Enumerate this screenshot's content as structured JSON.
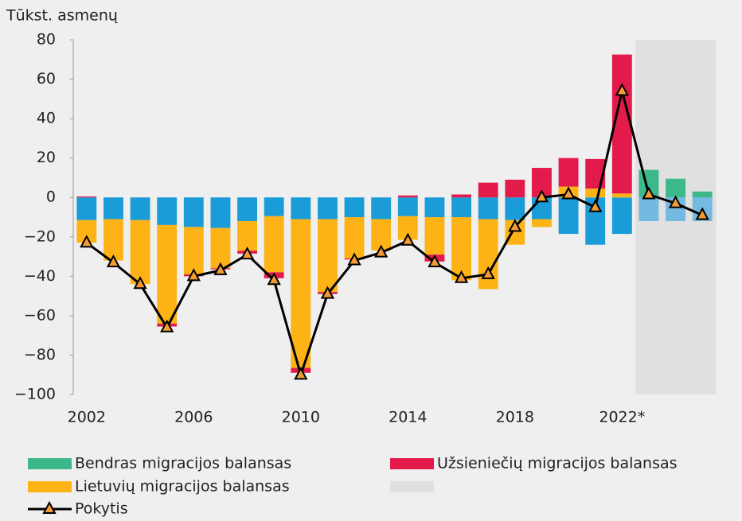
{
  "chart_data": {
    "type": "stacked-bar-line",
    "ylabel": "Tūkst. asmenų",
    "categories": [
      "2002",
      null,
      null,
      null,
      "2006",
      null,
      null,
      null,
      "2010",
      null,
      null,
      null,
      "2014",
      null,
      null,
      null,
      "2018",
      null,
      null,
      null,
      "2022*",
      null,
      null,
      null
    ],
    "ylim": [
      -100,
      80
    ],
    "yticks": [
      {
        "value": -100,
        "label": "−100"
      },
      {
        "value": -80,
        "label": "−80"
      },
      {
        "value": -60,
        "label": "−60"
      },
      {
        "value": -40,
        "label": "−40"
      },
      {
        "value": -20,
        "label": "−20"
      },
      0,
      20,
      40,
      60,
      80
    ],
    "series": [
      {
        "color": "#1a9cd8",
        "values": [
          -11.5,
          -11,
          -11.5,
          -14,
          -15,
          -15.5,
          -12,
          -9.5,
          -11,
          -11,
          -10,
          -11,
          -9.5,
          -10,
          -10,
          -11,
          -11.5,
          -11,
          -18.5,
          -24,
          -18.5,
          null,
          null,
          null
        ]
      },
      {
        "color": "#74b9e0",
        "shaded": true,
        "values": [
          null,
          null,
          null,
          null,
          null,
          null,
          null,
          null,
          null,
          null,
          null,
          null,
          null,
          null,
          null,
          null,
          null,
          null,
          null,
          null,
          null,
          -12,
          -12,
          -12
        ]
      },
      {
        "name": "Lietuvių migracijos balansas",
        "color": "#fdb316",
        "values": [
          -11.5,
          -21,
          -32.5,
          -50,
          -24,
          -20.5,
          -15,
          -28.5,
          -75.5,
          -37,
          -21,
          -16,
          -12,
          -19,
          -32,
          -35.5,
          -12.5,
          -4,
          5.5,
          4.5,
          2,
          null,
          null,
          null
        ]
      },
      {
        "name": "Užsieniečių migracijos balansas",
        "color": "#e31b4b",
        "values": [
          0.5,
          0,
          0,
          -1.5,
          -1,
          -0.5,
          -1.5,
          -3,
          -2.5,
          -1,
          -0.5,
          0,
          1,
          -3.5,
          1.5,
          7.5,
          9,
          15,
          14.5,
          15,
          70.5,
          null,
          null,
          null
        ]
      },
      {
        "name": "Bendras migracijos balansas",
        "color": "#3db88b",
        "values": [
          null,
          null,
          null,
          null,
          null,
          null,
          null,
          null,
          null,
          null,
          null,
          null,
          null,
          null,
          null,
          null,
          null,
          null,
          null,
          null,
          null,
          14,
          9.5,
          3
        ]
      }
    ],
    "line": {
      "name": "Pokytis",
      "color": "#000000",
      "marker_color": "#f39c34",
      "values": [
        -23,
        -33,
        -44,
        -66,
        -40,
        -37,
        -29,
        -42,
        -90,
        -49,
        -32,
        -28,
        -22,
        -33,
        -41,
        -39,
        -15,
        0,
        1.5,
        -5,
        54,
        1.5,
        -3,
        -9
      ]
    },
    "shade_color": "#e0e0e0",
    "legend": [
      "Bendras migracijos balansas",
      "Užsieniečių migracijos balansas",
      "Lietuvių migracijos balansas",
      "Pokytis"
    ]
  }
}
